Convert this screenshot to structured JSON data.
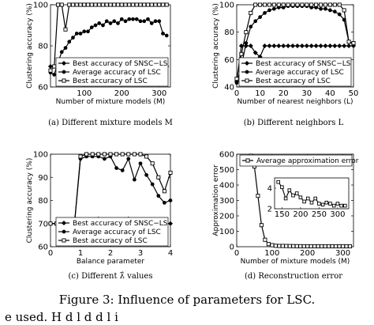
{
  "figure_caption": "Figure 3: Influence of parameters for LSC.",
  "trailing_text": "e used. H       d l     d       d l  i",
  "chart_data": [
    {
      "type": "line",
      "caption": "(a) Different mixture models M",
      "xlabel": "Number of mixture models (M)",
      "ylabel": "Clustering accuracy (%)",
      "xlim": [
        10,
        330
      ],
      "ylim": [
        60,
        100
      ],
      "xticks": [
        "100",
        "200",
        "300"
      ],
      "yticks": [
        "60",
        "80",
        "100"
      ],
      "legend": "bottom-center",
      "x": [
        10,
        20,
        30,
        40,
        50,
        60,
        70,
        80,
        90,
        100,
        110,
        120,
        130,
        140,
        150,
        160,
        170,
        180,
        190,
        200,
        210,
        220,
        230,
        240,
        250,
        260,
        270,
        280,
        290,
        300,
        310,
        320
      ],
      "series": [
        {
          "name": "Best accuracy of SNSC−LS",
          "marker": "diamond",
          "values": [
            70,
            70,
            70,
            70,
            70,
            70,
            70,
            70,
            70,
            70,
            70,
            70,
            70,
            70,
            70,
            70,
            70,
            70,
            70,
            70,
            70,
            70,
            70,
            70,
            70,
            70,
            70,
            70,
            70,
            70,
            70,
            70
          ]
        },
        {
          "name": "Average accuracy of LSC",
          "marker": "circle",
          "values": [
            67,
            66,
            72,
            77,
            79,
            82,
            84,
            86,
            86,
            87,
            87,
            89,
            90,
            91,
            90,
            92,
            91,
            92,
            91,
            93,
            92,
            93,
            93,
            93,
            92,
            92,
            93,
            91,
            92,
            92,
            86,
            85
          ]
        },
        {
          "name": "Best accuracy of LSC",
          "marker": "square",
          "values": [
            68,
            70,
            100,
            100,
            88,
            100,
            100,
            100,
            100,
            100,
            100,
            100,
            100,
            100,
            100,
            100,
            100,
            100,
            100,
            100,
            100,
            100,
            100,
            100,
            100,
            100,
            100,
            100,
            100,
            100,
            100,
            100
          ]
        }
      ]
    },
    {
      "type": "line",
      "caption": "(b) Different neighbors L",
      "xlabel": "Number of nearest neighbors (L)",
      "ylabel": "Clustering accuracy (%)",
      "xlim": [
        0,
        50
      ],
      "ylim": [
        40,
        100
      ],
      "xticks": [
        "0",
        "10",
        "20",
        "30",
        "40",
        "50"
      ],
      "yticks": [
        "40",
        "60",
        "80",
        "100"
      ],
      "legend": "bottom-center",
      "x": [
        0,
        2,
        4,
        6,
        8,
        10,
        12,
        14,
        16,
        18,
        20,
        22,
        24,
        26,
        28,
        30,
        32,
        34,
        36,
        38,
        40,
        42,
        44,
        46,
        48,
        50
      ],
      "series": [
        {
          "name": "Best accuracy of SNSC−LS",
          "marker": "diamond",
          "values": [
            44,
            70,
            70,
            70,
            65,
            62,
            70,
            70,
            70,
            70,
            70,
            70,
            70,
            70,
            70,
            70,
            70,
            70,
            70,
            70,
            70,
            70,
            70,
            70,
            70,
            70
          ]
        },
        {
          "name": "Average accuracy of LSC",
          "marker": "circle",
          "values": [
            43,
            55,
            72,
            84,
            88,
            91,
            94,
            96,
            97,
            98,
            98,
            99,
            99,
            99,
            99,
            99,
            98,
            98,
            97,
            97,
            96,
            95,
            93,
            89,
            73,
            71
          ]
        },
        {
          "name": "Best accuracy of LSC",
          "marker": "square",
          "values": [
            46,
            64,
            80,
            94,
            100,
            100,
            100,
            100,
            100,
            100,
            100,
            100,
            100,
            100,
            100,
            100,
            100,
            100,
            100,
            100,
            100,
            100,
            100,
            96,
            73,
            72
          ]
        }
      ]
    },
    {
      "type": "line",
      "caption": "(c) Different λ̂ values",
      "xlabel": "Balance parameter",
      "ylabel": "Clustering accuracy (%)",
      "xlim": [
        0,
        4
      ],
      "ylim": [
        60,
        100
      ],
      "xticks": [
        "0",
        "1",
        "2",
        "3",
        "4"
      ],
      "yticks": [
        "60",
        "70",
        "80",
        "90",
        "100"
      ],
      "legend": "bottom-center",
      "x": [
        0,
        0.2,
        0.4,
        0.6,
        0.8,
        1.0,
        1.2,
        1.4,
        1.6,
        1.8,
        2.0,
        2.2,
        2.4,
        2.6,
        2.8,
        3.0,
        3.2,
        3.4,
        3.6,
        3.8,
        4.0
      ],
      "series": [
        {
          "name": "Best accuracy of SNSC−LS",
          "marker": "diamond",
          "values": [
            70,
            70,
            70,
            70,
            70,
            70,
            71,
            70,
            72,
            70,
            71,
            70,
            71,
            72,
            70,
            71,
            70,
            70,
            71,
            70,
            70
          ]
        },
        {
          "name": "Average accuracy of LSC",
          "marker": "circle",
          "values": [
            70,
            70,
            70,
            70,
            70,
            98,
            99,
            99,
            99,
            98,
            99,
            94,
            93,
            98,
            89,
            96,
            91,
            87,
            82,
            79,
            80
          ]
        },
        {
          "name": "Best accuracy of LSC",
          "marker": "square",
          "values": [
            70,
            70,
            70,
            70,
            70,
            99,
            100,
            100,
            100,
            100,
            100,
            100,
            100,
            100,
            100,
            100,
            99,
            96,
            90,
            84,
            92
          ]
        }
      ]
    },
    {
      "type": "line",
      "caption": "(d) Reconstruction error",
      "xlabel": "Number of mixture models (M)",
      "ylabel": "Approximation error",
      "xlim": [
        0,
        330
      ],
      "ylim": [
        0,
        600
      ],
      "xticks": [
        "0",
        "100",
        "200",
        "300"
      ],
      "yticks": [
        "0",
        "100",
        "200",
        "300",
        "400",
        "500",
        "600"
      ],
      "legend": "top-right",
      "x": [
        40,
        50,
        60,
        70,
        80,
        90,
        100,
        110,
        120,
        130,
        140,
        150,
        160,
        170,
        180,
        190,
        200,
        210,
        220,
        230,
        240,
        250,
        260,
        270,
        280,
        290,
        300,
        310,
        320
      ],
      "series": [
        {
          "name": "Average approximation error",
          "marker": "square",
          "values": [
            590,
            520,
            330,
            140,
            45,
            17,
            10,
            6,
            5,
            5,
            4.5,
            4.2,
            3.8,
            3.5,
            3.2,
            3.0,
            3.0,
            2.9,
            2.8,
            2.8,
            2.8,
            2.8,
            2.7,
            2.7,
            2.7,
            2.7,
            2.7,
            2.7,
            2.7
          ]
        }
      ],
      "inset": {
        "xlim": [
          130,
          330
        ],
        "ylim": [
          2,
          5
        ],
        "xticks": [
          "150",
          "200",
          "250",
          "300"
        ],
        "yticks": [
          "2",
          "4"
        ],
        "x": [
          140,
          150,
          160,
          170,
          180,
          190,
          200,
          210,
          220,
          230,
          240,
          250,
          260,
          270,
          280,
          290,
          300,
          310,
          320
        ],
        "values": [
          4.6,
          4.1,
          3.0,
          3.8,
          3.3,
          3.5,
          3.1,
          2.7,
          3.0,
          2.6,
          3.0,
          2.5,
          2.4,
          2.6,
          2.5,
          2.3,
          2.5,
          2.3,
          2.3
        ]
      }
    }
  ]
}
